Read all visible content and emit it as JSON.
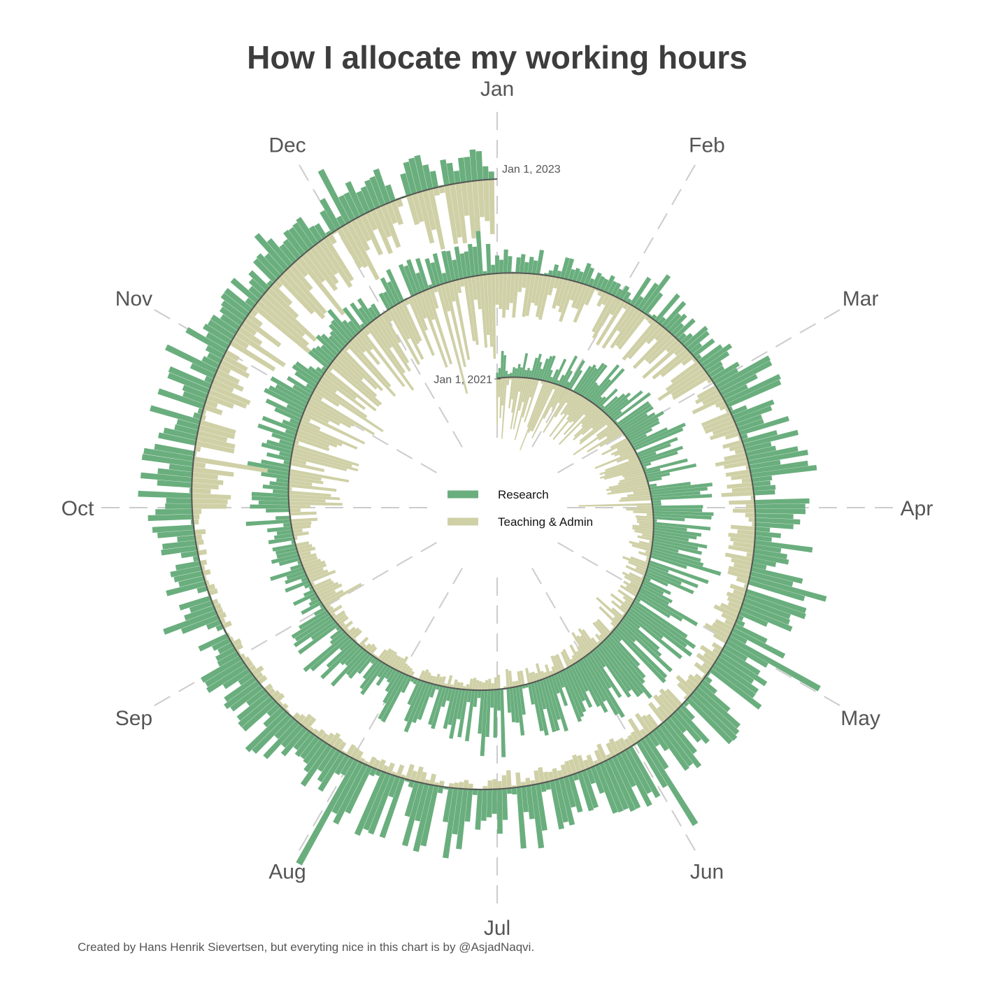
{
  "chart_data": {
    "type": "bar",
    "subtype": "spiral (polar) bar chart, one bar per day, both series stacked outward and inward from the spiral baseline",
    "title": "How I allocate my working hours",
    "caption": "Created by Hans Henrik Sievertsen, but everyting nice in this chart is by @AsjadNaqvi.",
    "months": [
      "Jan",
      "Feb",
      "Mar",
      "Apr",
      "May",
      "Jun",
      "Jul",
      "Aug",
      "Sep",
      "Oct",
      "Nov",
      "Dec"
    ],
    "date_range": [
      "Jan 1, 2021",
      "Jan 1, 2023"
    ],
    "annotations": [
      {
        "text": "Jan 1, 2021",
        "at": "spiral start"
      },
      {
        "text": "Jan 1, 2023",
        "at": "spiral end"
      }
    ],
    "series": [
      {
        "name": "Research",
        "color": "#6aae7e",
        "direction": "outward"
      },
      {
        "name": "Teaching & Admin",
        "color": "#cfd0a6",
        "direction": "inward"
      }
    ],
    "value_unit": "hours per day (approximate, read from bar lengths)",
    "monthly_typical_hours": {
      "2021": {
        "Research": [
          1.5,
          2.5,
          3.5,
          4.0,
          4.5,
          4.0,
          3.0,
          3.0,
          1.5,
          2.5,
          2.0,
          2.0
        ],
        "Teaching & Admin": [
          3.5,
          3.0,
          2.5,
          1.5,
          1.5,
          1.0,
          0.7,
          1.0,
          1.5,
          4.0,
          4.5,
          5.0
        ]
      },
      "2022": {
        "Research": [
          1.5,
          2.0,
          3.5,
          3.5,
          3.5,
          3.5,
          4.0,
          3.0,
          2.5,
          3.0,
          2.0,
          2.0
        ],
        "Teaching & Admin": [
          2.5,
          3.0,
          2.0,
          1.5,
          1.5,
          1.0,
          0.7,
          0.8,
          0.5,
          2.5,
          4.0,
          3.5
        ]
      }
    },
    "grid": true,
    "legend_position": "center"
  },
  "legend": {
    "items": [
      {
        "label": "Research",
        "color": "#6aae7e"
      },
      {
        "label": "Teaching & Admin",
        "color": "#cfd0a6"
      }
    ]
  },
  "colors": {
    "research": "#6aae7e",
    "teaching": "#cfd0a6",
    "spiral_line": "#555555",
    "grid_line": "#cccccc",
    "title_text": "#3d3d3d"
  }
}
